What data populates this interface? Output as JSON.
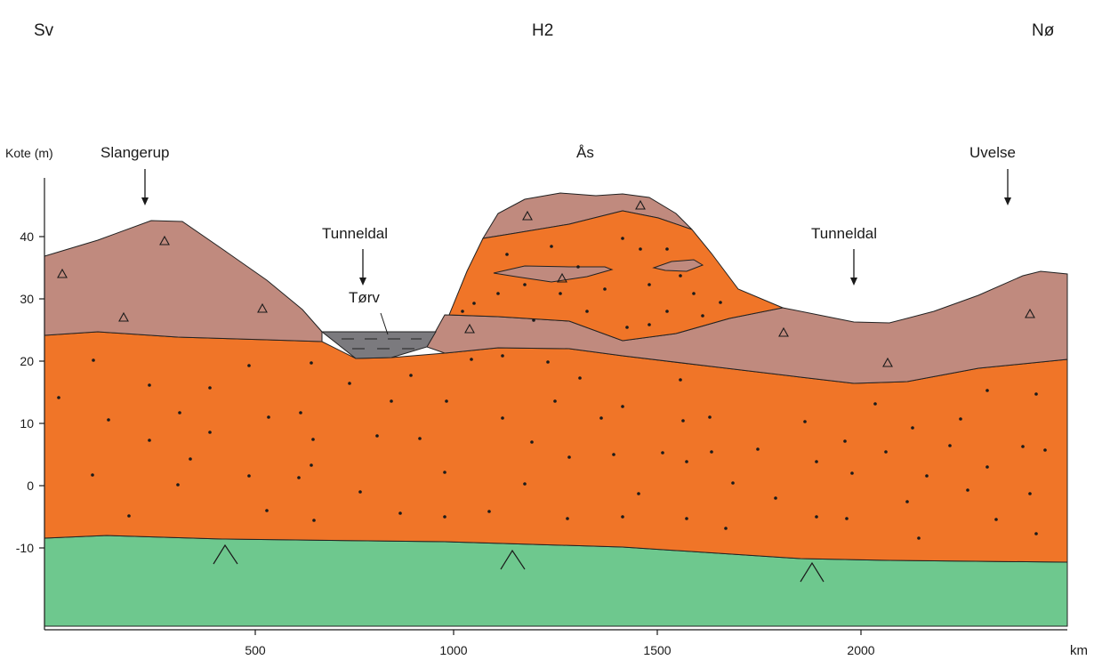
{
  "directions": {
    "left": "Sv",
    "center": "H2",
    "right": "Nø"
  },
  "axis": {
    "y_label": "Kote (m)",
    "x_unit": "km",
    "y_ticks": [
      "40",
      "30",
      "20",
      "10",
      "0",
      "-10"
    ],
    "x_ticks": [
      "500",
      "1000",
      "1500",
      "2000"
    ]
  },
  "places": {
    "slangerup": "Slangerup",
    "as": "Ås",
    "uvelse": "Uvelse",
    "tunneldal_1": "Tunneldal",
    "tunneldal_2": "Tunneldal",
    "torv": "Tørv"
  },
  "colors": {
    "till": "#c08a7e",
    "sand_gravel": "#f07528",
    "bedrock": "#6ec88e",
    "peat": "#7b7a7e"
  }
}
